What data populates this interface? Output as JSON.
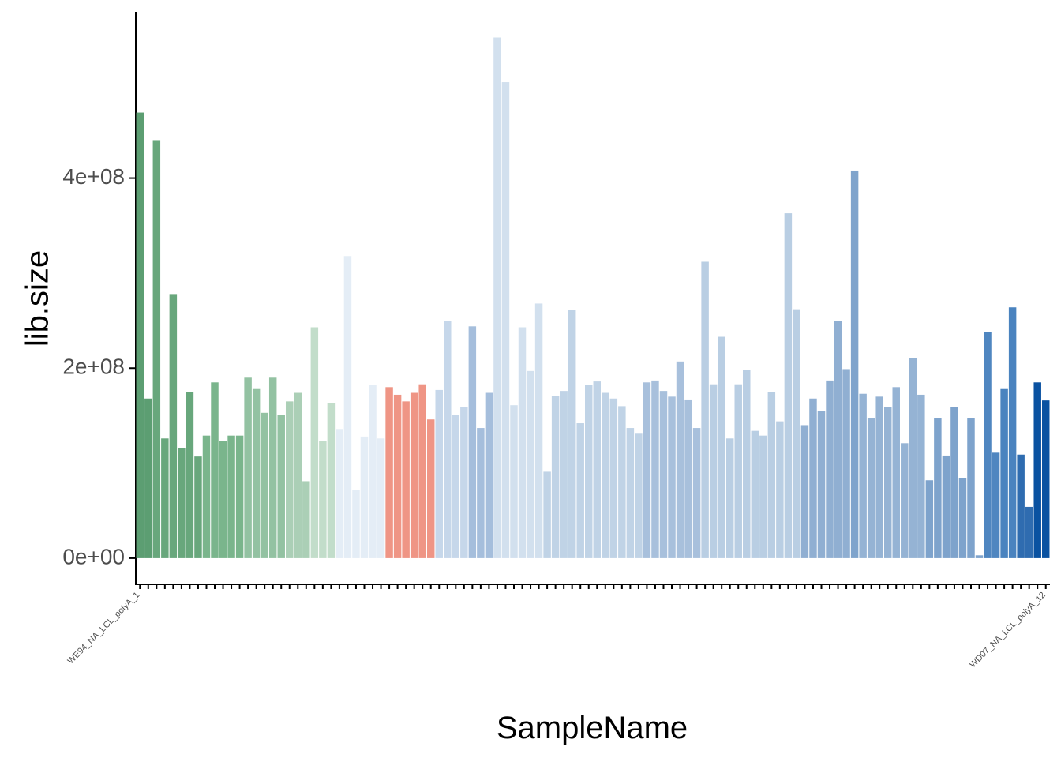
{
  "chart_data": {
    "type": "bar",
    "x_label": "SampleName",
    "y_label": "lib.size",
    "categories": [
      "WE94_NA_LCL_polyA_1",
      null,
      null,
      null,
      null,
      null,
      null,
      null,
      null,
      null,
      null,
      null,
      null,
      null,
      null,
      null,
      null,
      null,
      null,
      null,
      null,
      null,
      null,
      null,
      null,
      null,
      null,
      null,
      null,
      null,
      null,
      null,
      null,
      null,
      null,
      null,
      null,
      null,
      null,
      null,
      null,
      null,
      null,
      null,
      null,
      null,
      null,
      null,
      null,
      null,
      null,
      null,
      null,
      null,
      null,
      null,
      null,
      null,
      null,
      null,
      null,
      null,
      null,
      null,
      null,
      null,
      null,
      null,
      null,
      null,
      null,
      null,
      null,
      null,
      null,
      null,
      null,
      null,
      null,
      null,
      null,
      null,
      null,
      null,
      null,
      null,
      null,
      null,
      null,
      null,
      null,
      null,
      null,
      null,
      null,
      null,
      null,
      null,
      null,
      null,
      null,
      null,
      null,
      null,
      null,
      null,
      null,
      null,
      null,
      "WD07_NA_LCL_polyA_12"
    ],
    "values": [
      469000000,
      168000000,
      440000000,
      126000000,
      278000000,
      116000000,
      175000000,
      107000000,
      129000000,
      185000000,
      123000000,
      129000000,
      129000000,
      190000000,
      178000000,
      153000000,
      190000000,
      151000000,
      165000000,
      174000000,
      81000000,
      243000000,
      123000000,
      163000000,
      136000000,
      318000000,
      72000000,
      128000000,
      182000000,
      126000000,
      180000000,
      172000000,
      165000000,
      174000000,
      183000000,
      146000000,
      177000000,
      250000000,
      151000000,
      159000000,
      244000000,
      137000000,
      174000000,
      548000000,
      501000000,
      161000000,
      243000000,
      197000000,
      268000000,
      91000000,
      171000000,
      176000000,
      261000000,
      142000000,
      182000000,
      186000000,
      174000000,
      168000000,
      160000000,
      137000000,
      131000000,
      185000000,
      187000000,
      176000000,
      170000000,
      207000000,
      167000000,
      137000000,
      312000000,
      183000000,
      233000000,
      126000000,
      183000000,
      198000000,
      134000000,
      129000000,
      175000000,
      144000000,
      363000000,
      262000000,
      140000000,
      168000000,
      155000000,
      187000000,
      250000000,
      199000000,
      408000000,
      173000000,
      147000000,
      170000000,
      159000000,
      180000000,
      121000000,
      211000000,
      172000000,
      82000000,
      147000000,
      108000000,
      159000000,
      84000000,
      147000000,
      3000000,
      238000000,
      111000000,
      178000000,
      264000000,
      109000000,
      54000000,
      185000000,
      166000000
    ],
    "colors": [
      "#5c9e72",
      "#5c9e72",
      "#68a77c",
      "#68a77c",
      "#68a77c",
      "#68a77c",
      "#68a77c",
      "#68a77c",
      "#7ab58c",
      "#7ab58c",
      "#7ab58c",
      "#7ab58c",
      "#7ab58c",
      "#93c2a2",
      "#93c2a2",
      "#93c2a2",
      "#93c2a2",
      "#93c2a2",
      "#abcfb6",
      "#abcfb6",
      "#abcfb6",
      "#c2ddca",
      "#c2ddca",
      "#c2ddca",
      "#e4edf6",
      "#e4edf6",
      "#e4edf6",
      "#e4edf6",
      "#e4edf6",
      "#e4edf6",
      "#ef9585",
      "#ef9585",
      "#ef9585",
      "#ef9585",
      "#ef9585",
      "#ef9585",
      "#c6d7ea",
      "#c6d7ea",
      "#c6d7ea",
      "#c6d7ea",
      "#a5bedc",
      "#a5bedc",
      "#a5bedc",
      "#d2e0ee",
      "#d2e0ee",
      "#d2e0ee",
      "#d2e0ee",
      "#d2e0ee",
      "#d2e0ee",
      "#c0d3e6",
      "#c0d3e6",
      "#c0d3e6",
      "#c0d3e6",
      "#c0d3e6",
      "#c0d3e6",
      "#c0d3e6",
      "#c0d3e6",
      "#c0d3e6",
      "#c0d3e6",
      "#c0d3e6",
      "#c0d3e6",
      "#a8c0dc",
      "#a8c0dc",
      "#a8c0dc",
      "#a8c0dc",
      "#a8c0dc",
      "#a8c0dc",
      "#a8c0dc",
      "#b9cee3",
      "#b9cee3",
      "#b9cee3",
      "#b9cee3",
      "#b9cee3",
      "#b9cee3",
      "#b9cee3",
      "#b9cee3",
      "#b9cee3",
      "#b9cee3",
      "#b9cee3",
      "#b9cee3",
      "#90afd2",
      "#90afd2",
      "#90afd2",
      "#90afd2",
      "#90afd2",
      "#90afd2",
      "#7fa4cc",
      "#95b3d4",
      "#95b3d4",
      "#95b3d4",
      "#95b3d4",
      "#95b3d4",
      "#95b3d4",
      "#95b3d4",
      "#95b3d4",
      "#7ea3cc",
      "#7ea3cc",
      "#7ea3cc",
      "#7ea3cc",
      "#7ea3cc",
      "#7ea3cc",
      "#7ea3cc",
      "#4f86c0",
      "#4f86c0",
      "#4a83bf",
      "#4a83bf",
      "#2f6cb0",
      "#2f6cb0",
      "#0a52a1",
      "#0a52a1"
    ],
    "ylim": [
      -27500000,
      575000000
    ],
    "yticks": [
      {
        "value": 0,
        "label": "0e+00"
      },
      {
        "value": 200000000,
        "label": "2e+08"
      },
      {
        "value": 400000000,
        "label": "4e+08"
      }
    ],
    "grid": false
  }
}
